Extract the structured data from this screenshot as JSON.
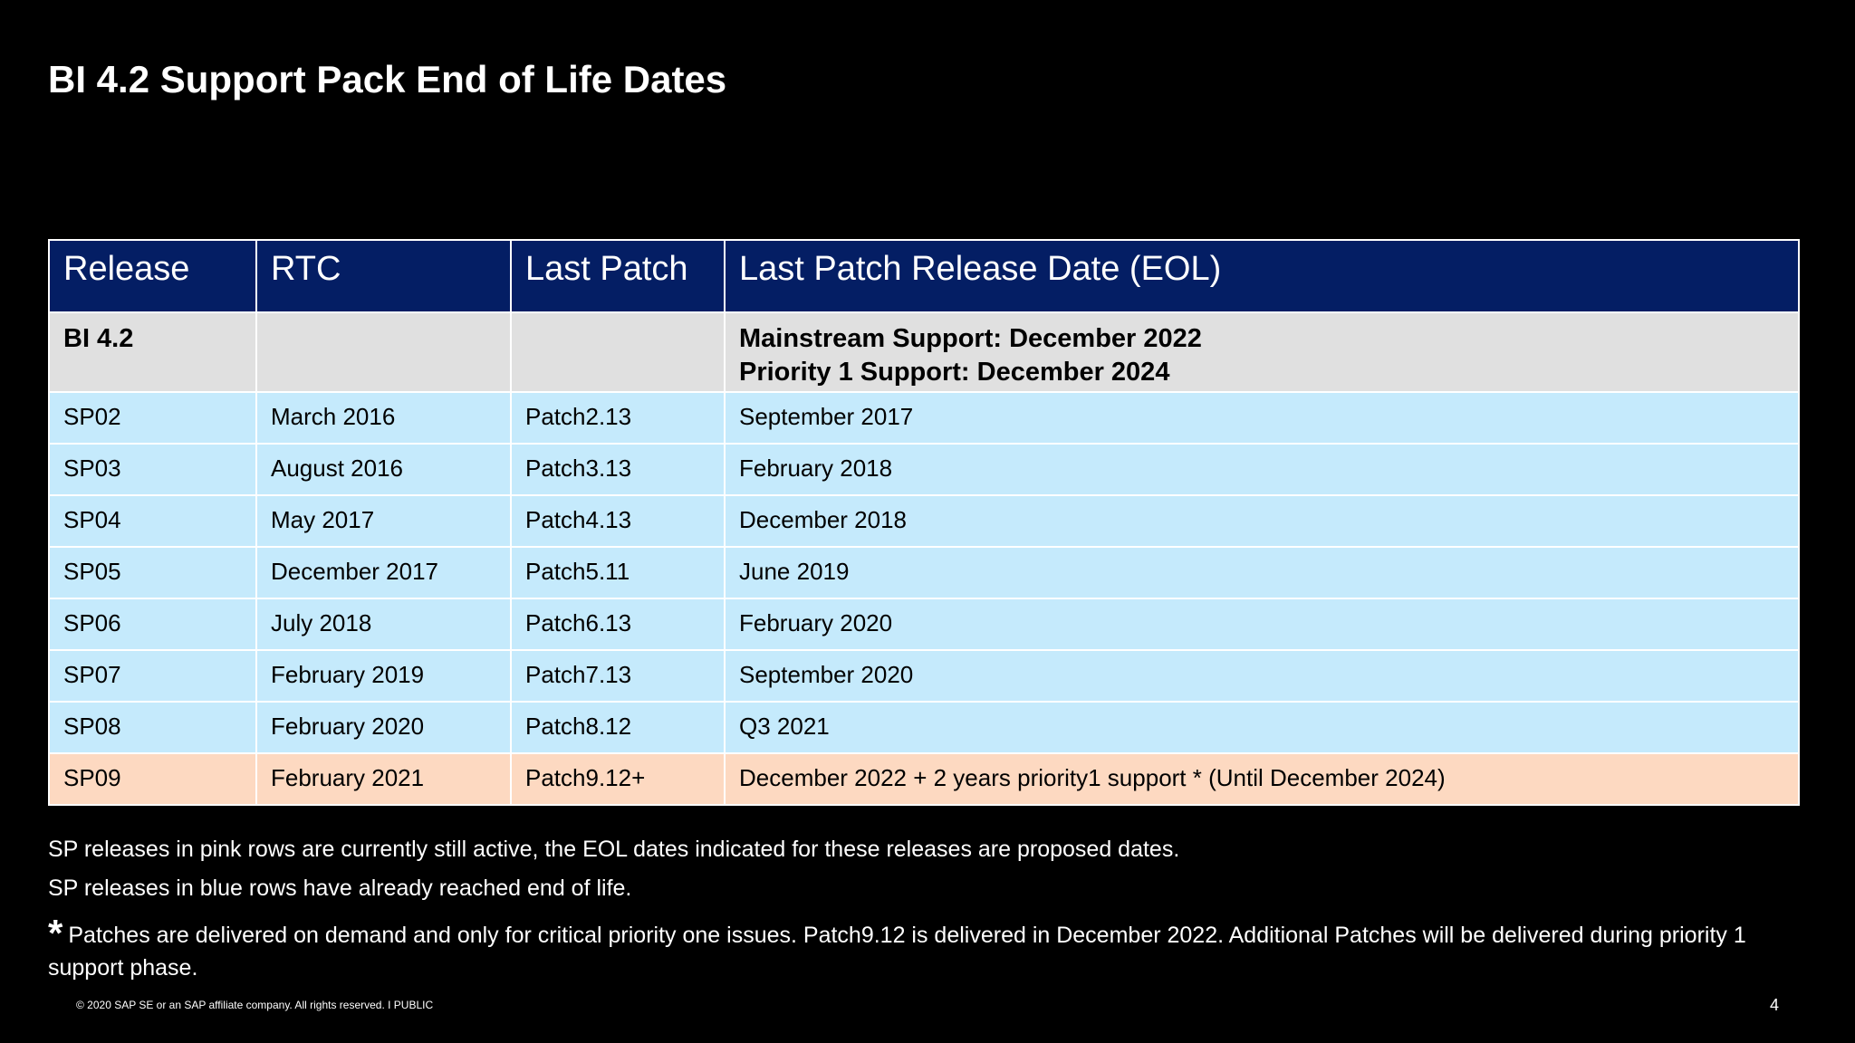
{
  "slide": {
    "title": "BI 4.2 Support Pack End of Life Dates",
    "page_number": "4",
    "footer": "© 2020 SAP SE or an SAP affiliate company. All rights reserved.   I   PUBLIC"
  },
  "table": {
    "headers": [
      "Release",
      "RTC",
      "Last Patch",
      "Last Patch Release Date (EOL)"
    ],
    "summary_row": {
      "release": "BI 4.2",
      "rtc": "",
      "last_patch": "",
      "eol_line1": "Mainstream Support: December  2022",
      "eol_line2": "Priority 1 Support: December  2024"
    },
    "rows": [
      {
        "release": "SP02",
        "rtc": "March 2016",
        "last_patch": "Patch2.13",
        "eol": "September 2017"
      },
      {
        "release": "SP03",
        "rtc": "August 2016",
        "last_patch": "Patch3.13",
        "eol": "February 2018"
      },
      {
        "release": "SP04",
        "rtc": "May 2017",
        "last_patch": "Patch4.13",
        "eol": "December 2018"
      },
      {
        "release": "SP05",
        "rtc": "December 2017",
        "last_patch": "Patch5.11",
        "eol": "June 2019"
      },
      {
        "release": "SP06",
        "rtc": "July 2018",
        "last_patch": "Patch6.13",
        "eol": "February 2020"
      },
      {
        "release": "SP07",
        "rtc": "February 2019",
        "last_patch": "Patch7.13",
        "eol": "September 2020"
      },
      {
        "release": "SP08",
        "rtc": "February 2020",
        "last_patch": "Patch8.12",
        "eol": "Q3 2021"
      },
      {
        "release": "SP09",
        "rtc": "February 2021",
        "last_patch": "Patch9.12+",
        "eol": "December 2022 + 2 years priority1 support * (Until December 2024)"
      }
    ]
  },
  "notes": {
    "pink": "SP releases in pink rows are currently still active, the EOL dates indicated for these releases are proposed dates.",
    "blue": "SP releases in blue rows have already reached end of life.",
    "asterisk": "*",
    "patches": "Patches are delivered on demand and only for critical priority one issues. Patch9.12 is delivered in December 2022. Additional Patches will be delivered during priority 1 support phase."
  },
  "colors": {
    "background": "#000000",
    "header": "#041e64",
    "summary_row": "#e0e0e0",
    "blue_row": "#c5eafc",
    "pink_row": "#fdd9c1"
  }
}
